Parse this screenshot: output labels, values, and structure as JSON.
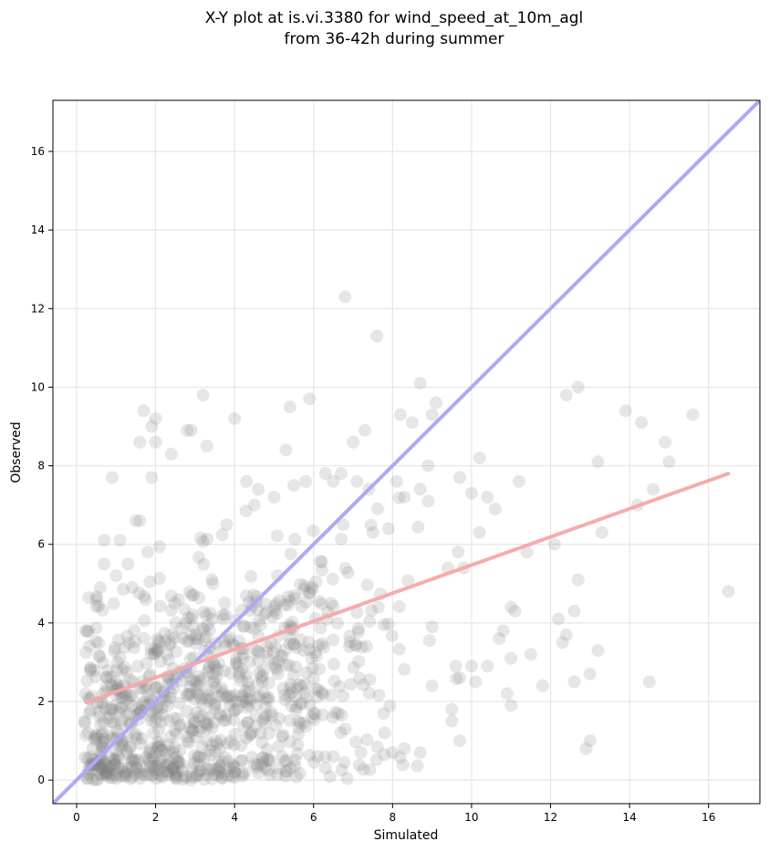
{
  "chart_data": {
    "type": "scatter",
    "title_line1": "X-Y plot at is.vi.3380 for wind_speed_at_10m_agl",
    "title_line2": "from 36-42h during summer",
    "xlabel": "Simulated",
    "ylabel": "Observed",
    "xlim": [
      -0.6,
      17.3
    ],
    "ylim": [
      -0.6,
      17.3
    ],
    "x_ticks": [
      "0",
      "2",
      "4",
      "6",
      "8",
      "10",
      "12",
      "14",
      "16"
    ],
    "y_ticks": [
      "0",
      "2",
      "4",
      "6",
      "8",
      "10",
      "12",
      "14",
      "16"
    ],
    "grid": true,
    "point_color": "#808080",
    "identity_line_color": "#aaaaf5",
    "fit_line_color": "#f5a8a8",
    "identity_line": {
      "x1": -0.6,
      "y1": -0.6,
      "x2": 17.3,
      "y2": 17.3
    },
    "fit_line": {
      "x1": 0.25,
      "y1": 1.98,
      "x2": 16.5,
      "y2": 7.8
    },
    "points": [
      [
        0.3,
        3.8
      ],
      [
        0.5,
        4.6
      ],
      [
        0.6,
        4.9
      ],
      [
        0.7,
        5.5
      ],
      [
        0.7,
        6.1
      ],
      [
        0.9,
        7.7
      ],
      [
        1.0,
        5.2
      ],
      [
        1.1,
        6.1
      ],
      [
        1.3,
        5.5
      ],
      [
        1.5,
        6.6
      ],
      [
        1.6,
        6.6
      ],
      [
        1.8,
        5.8
      ],
      [
        1.9,
        7.7
      ],
      [
        1.9,
        9.0
      ],
      [
        2.0,
        9.2
      ],
      [
        2.0,
        8.6
      ],
      [
        1.7,
        9.4
      ],
      [
        1.6,
        8.6
      ],
      [
        2.4,
        8.3
      ],
      [
        2.8,
        8.9
      ],
      [
        2.9,
        8.9
      ],
      [
        3.2,
        9.8
      ],
      [
        3.3,
        8.5
      ],
      [
        4.0,
        9.2
      ],
      [
        4.3,
        7.6
      ],
      [
        3.8,
        6.5
      ],
      [
        4.5,
        7.0
      ],
      [
        4.6,
        7.4
      ],
      [
        5.0,
        7.2
      ],
      [
        5.3,
        8.4
      ],
      [
        5.4,
        9.5
      ],
      [
        5.5,
        7.5
      ],
      [
        5.8,
        7.6
      ],
      [
        5.9,
        9.7
      ],
      [
        6.3,
        7.8
      ],
      [
        6.5,
        7.6
      ],
      [
        6.7,
        7.8
      ],
      [
        6.8,
        12.3
      ],
      [
        7.0,
        8.6
      ],
      [
        7.1,
        7.6
      ],
      [
        7.3,
        8.9
      ],
      [
        7.6,
        11.3
      ],
      [
        7.4,
        7.4
      ],
      [
        7.5,
        6.3
      ],
      [
        7.9,
        6.4
      ],
      [
        8.1,
        7.6
      ],
      [
        8.3,
        7.2
      ],
      [
        8.5,
        9.1
      ],
      [
        8.2,
        9.3
      ],
      [
        8.7,
        7.4
      ],
      [
        8.7,
        10.1
      ],
      [
        8.9,
        8.0
      ],
      [
        9.0,
        9.3
      ],
      [
        9.1,
        9.6
      ],
      [
        8.9,
        7.1
      ],
      [
        9.4,
        5.4
      ],
      [
        9.7,
        7.7
      ],
      [
        9.8,
        5.4
      ],
      [
        10.0,
        7.3
      ],
      [
        10.2,
        6.3
      ],
      [
        10.2,
        8.2
      ],
      [
        10.4,
        7.2
      ],
      [
        10.6,
        6.9
      ],
      [
        10.7,
        3.6
      ],
      [
        10.8,
        3.8
      ],
      [
        11.0,
        3.1
      ],
      [
        11.1,
        4.3
      ],
      [
        11.0,
        4.4
      ],
      [
        11.2,
        7.6
      ],
      [
        11.4,
        5.8
      ],
      [
        11.5,
        3.2
      ],
      [
        11.8,
        2.4
      ],
      [
        12.1,
        6.0
      ],
      [
        12.2,
        4.1
      ],
      [
        12.3,
        3.5
      ],
      [
        12.4,
        3.7
      ],
      [
        12.4,
        9.8
      ],
      [
        12.6,
        4.3
      ],
      [
        12.7,
        10.0
      ],
      [
        12.6,
        2.5
      ],
      [
        12.7,
        5.1
      ],
      [
        13.0,
        2.7
      ],
      [
        13.2,
        3.3
      ],
      [
        13.2,
        8.1
      ],
      [
        13.3,
        6.3
      ],
      [
        13.0,
        1.0
      ],
      [
        12.9,
        0.8
      ],
      [
        13.9,
        9.4
      ],
      [
        14.2,
        7.0
      ],
      [
        14.3,
        9.1
      ],
      [
        14.5,
        2.5
      ],
      [
        14.6,
        7.4
      ],
      [
        14.9,
        8.6
      ],
      [
        15.0,
        8.1
      ],
      [
        15.6,
        9.3
      ],
      [
        16.5,
        4.8
      ],
      [
        11.0,
        1.9
      ],
      [
        10.9,
        2.2
      ],
      [
        10.4,
        2.9
      ],
      [
        10.0,
        2.9
      ],
      [
        10.1,
        2.5
      ],
      [
        9.7,
        2.6
      ],
      [
        9.7,
        1.0
      ],
      [
        9.5,
        1.8
      ],
      [
        9.5,
        1.5
      ],
      [
        9.6,
        2.9
      ],
      [
        9.0,
        2.4
      ],
      [
        8.7,
        0.7
      ],
      [
        8.3,
        0.8
      ],
      [
        8.0,
        0.7
      ],
      [
        7.8,
        1.2
      ],
      [
        7.2,
        0.7
      ],
      [
        6.8,
        1.3
      ],
      [
        6.5,
        0.6
      ],
      [
        6.3,
        0.3
      ],
      [
        6.1,
        0.6
      ],
      [
        6.0,
        1.7
      ],
      [
        5.6,
        0.9
      ],
      [
        5.3,
        0.2
      ],
      [
        5.2,
        0.6
      ],
      [
        4.9,
        0.5
      ],
      [
        4.5,
        0.4
      ],
      [
        4.2,
        0.1
      ],
      [
        4.0,
        0.2
      ],
      [
        3.3,
        0.3
      ],
      [
        3.1,
        0.4
      ],
      [
        2.9,
        0.0
      ],
      [
        2.5,
        0.1
      ],
      [
        2.2,
        0.2
      ],
      [
        1.9,
        0.1
      ],
      [
        1.6,
        0.2
      ],
      [
        1.3,
        0.3
      ],
      [
        1.1,
        0.1
      ],
      [
        0.8,
        0.2
      ],
      [
        0.6,
        0.3
      ],
      [
        0.5,
        0.0
      ],
      [
        0.4,
        0.4
      ],
      [
        0.3,
        1.2
      ],
      [
        0.2,
        1.5
      ]
    ]
  }
}
